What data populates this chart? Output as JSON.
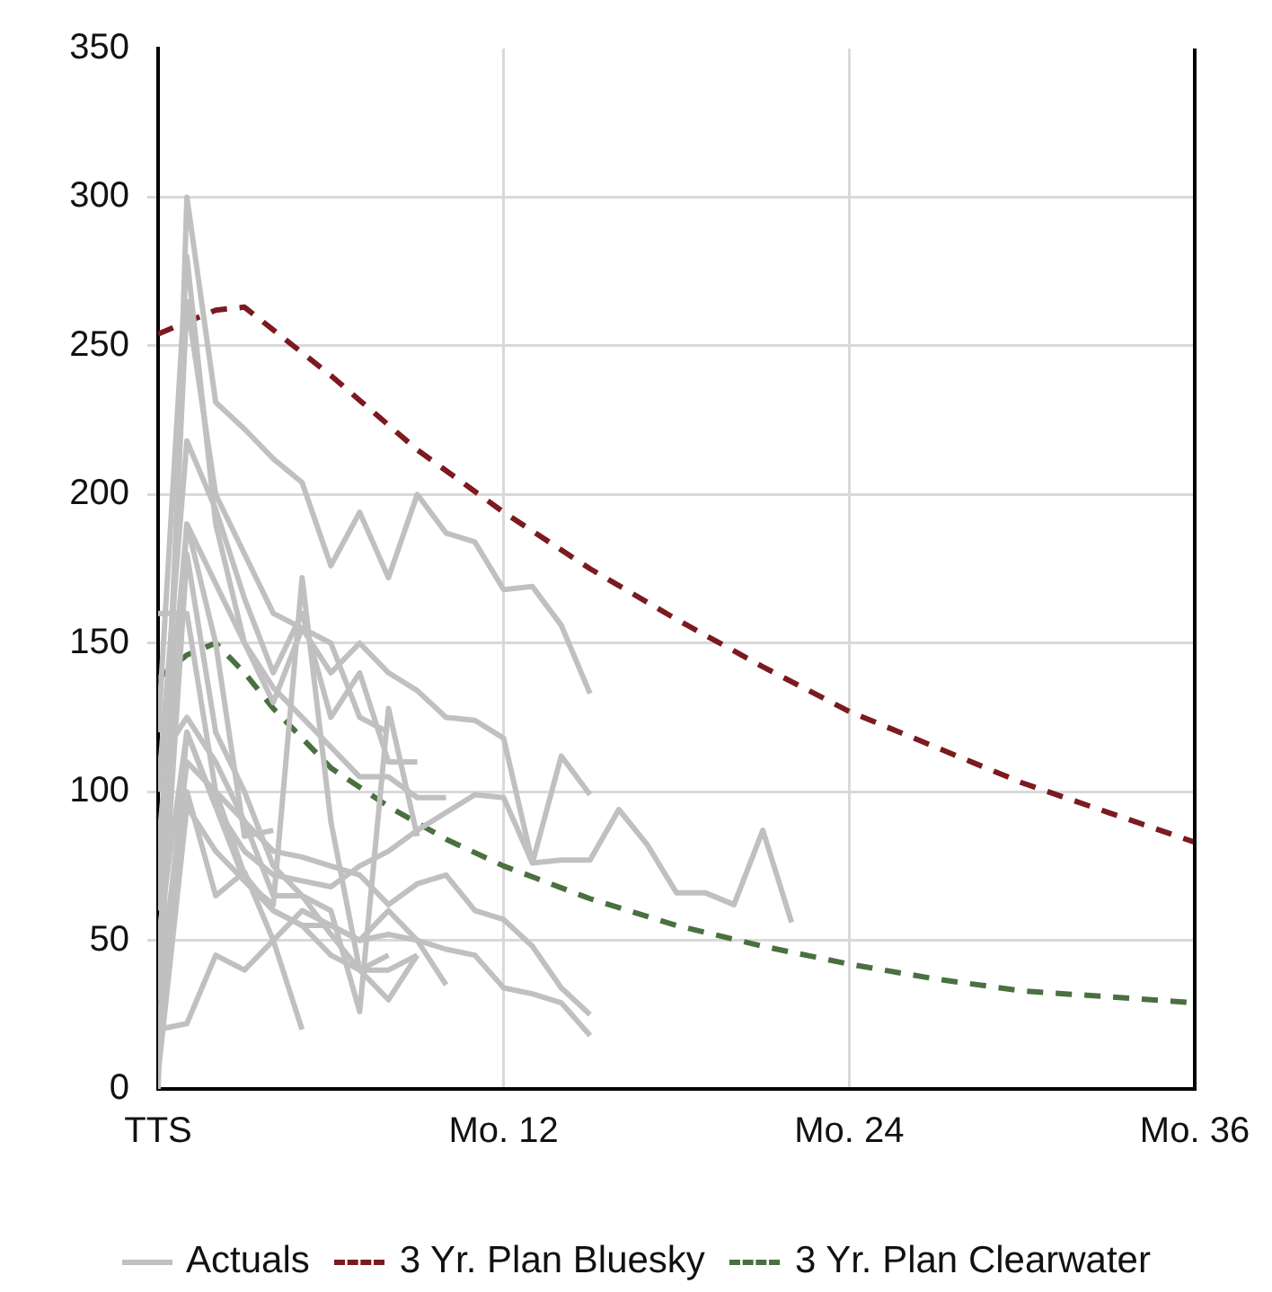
{
  "chart_data": {
    "type": "line",
    "xlim": [
      0,
      36
    ],
    "xticks": [
      {
        "value": 0,
        "label": "TTS"
      },
      {
        "value": 12,
        "label": "Mo. 12"
      },
      {
        "value": 24,
        "label": "Mo. 24"
      },
      {
        "value": 36,
        "label": "Mo. 36"
      }
    ],
    "ylim": [
      0,
      350
    ],
    "yticks": [
      0,
      50,
      100,
      150,
      200,
      250,
      300,
      350
    ],
    "grid": true,
    "legend": "bottom",
    "marker": "none",
    "series": [
      {
        "name": "Actuals",
        "color": "#c0c0c0",
        "x": [
          0,
          1,
          2,
          3,
          4,
          5,
          6,
          7,
          8,
          9,
          10,
          11,
          12,
          13,
          14,
          15
        ],
        "values": [
          0,
          300,
          231,
          222,
          212,
          204,
          176,
          194,
          172,
          200,
          187,
          184,
          168,
          169,
          156,
          133
        ]
      },
      {
        "color": "#c0c0c0",
        "x": [
          0,
          1,
          2,
          3,
          4,
          5,
          6,
          7,
          8,
          9,
          10,
          11,
          12,
          13,
          14,
          15
        ],
        "values": [
          60,
          265,
          200,
          180,
          160,
          155,
          140,
          150,
          140,
          134,
          125,
          124,
          118,
          76,
          112,
          99
        ]
      },
      {
        "color": "#c0c0c0",
        "x": [
          0,
          1,
          2,
          3,
          4,
          5,
          6,
          7,
          8,
          9,
          10,
          11,
          12,
          13,
          14,
          15,
          16,
          17,
          18,
          19,
          20,
          21,
          22
        ],
        "values": [
          10,
          120,
          95,
          80,
          72,
          70,
          68,
          75,
          80,
          87,
          93,
          99,
          98,
          76,
          77,
          77,
          94,
          82,
          66,
          66,
          62,
          87,
          56
        ]
      },
      {
        "color": "#c0c0c0",
        "x": [
          0,
          1,
          2,
          3,
          4,
          5,
          6,
          7,
          8,
          9,
          10,
          11,
          12,
          13,
          14,
          15
        ],
        "values": [
          30,
          110,
          100,
          90,
          80,
          78,
          75,
          72,
          62,
          69,
          72,
          60,
          57,
          48,
          34,
          25
        ]
      },
      {
        "color": "#c0c0c0",
        "x": [
          0,
          1,
          2,
          3,
          4,
          5,
          6,
          7,
          8,
          9,
          10,
          11,
          12,
          13,
          14,
          15
        ],
        "values": [
          5,
          95,
          80,
          70,
          60,
          55,
          55,
          50,
          52,
          50,
          47,
          45,
          34,
          32,
          29,
          18
        ]
      },
      {
        "color": "#c0c0c0",
        "x": [
          0,
          1,
          2,
          3,
          4,
          5,
          6,
          7,
          8,
          9,
          10
        ],
        "values": [
          80,
          190,
          170,
          150,
          135,
          125,
          115,
          105,
          105,
          98,
          98
        ]
      },
      {
        "color": "#c0c0c0",
        "x": [
          0,
          1,
          2,
          3,
          4
        ],
        "values": [
          40,
          190,
          150,
          85,
          87
        ]
      },
      {
        "color": "#c0c0c0",
        "x": [
          0,
          1,
          2,
          3,
          4,
          5
        ],
        "values": [
          20,
          22,
          45,
          40,
          50,
          20
        ]
      },
      {
        "color": "#c0c0c0",
        "x": [
          0,
          1,
          2,
          3,
          4,
          5,
          6,
          7,
          8
        ],
        "values": [
          50,
          120,
          95,
          70,
          62,
          172,
          90,
          40,
          45
        ]
      },
      {
        "color": "#c0c0c0",
        "x": [
          0,
          1,
          2,
          3,
          4,
          5,
          6,
          7,
          8,
          9
        ],
        "values": [
          30,
          180,
          120,
          100,
          75,
          65,
          60,
          26,
          128,
          85
        ]
      },
      {
        "color": "#c0c0c0",
        "x": [
          0,
          1,
          2,
          3,
          4,
          5,
          6,
          7,
          8,
          9
        ],
        "values": [
          100,
          218,
          195,
          165,
          140,
          160,
          125,
          140,
          110,
          110
        ]
      },
      {
        "color": "#c0c0c0",
        "x": [
          0,
          1,
          2,
          3,
          4,
          5,
          6,
          7,
          8,
          9
        ],
        "values": [
          160,
          160,
          100,
          72,
          60,
          55,
          45,
          40,
          40,
          45
        ]
      },
      {
        "color": "#c0c0c0",
        "x": [
          0,
          1,
          2,
          3,
          4,
          5,
          6,
          7,
          8,
          9,
          10
        ],
        "values": [
          15,
          100,
          65,
          73,
          50,
          60,
          55,
          50,
          60,
          50,
          35
        ]
      },
      {
        "color": "#c0c0c0",
        "x": [
          0,
          1,
          2,
          3,
          4,
          5,
          6,
          7,
          8,
          9
        ],
        "values": [
          110,
          125,
          110,
          90,
          65,
          65,
          52,
          40,
          30,
          45
        ]
      },
      {
        "color": "#c0c0c0",
        "x": [
          0,
          1,
          2,
          3,
          4,
          5,
          6,
          7,
          8
        ],
        "values": [
          120,
          280,
          190,
          150,
          130,
          155,
          150,
          125,
          120
        ]
      },
      {
        "name": "3 Yr. Plan Bluesky",
        "color": "#7b1a1f",
        "line_style": "dashed",
        "x": [
          0,
          1,
          2,
          3,
          6,
          9,
          12,
          15,
          18,
          21,
          24,
          27,
          30,
          33,
          36
        ],
        "values": [
          254,
          258,
          262,
          263,
          240,
          215,
          194,
          175,
          158,
          142,
          127,
          115,
          103,
          93,
          83
        ]
      },
      {
        "name": "3 Yr. Plan Clearwater",
        "color": "#4a7040",
        "line_style": "dashed",
        "x": [
          0,
          1,
          2,
          3,
          4,
          5,
          6,
          8,
          10,
          12,
          15,
          18,
          21,
          24,
          27,
          30,
          33,
          36
        ],
        "values": [
          138,
          146,
          150,
          140,
          128,
          118,
          108,
          95,
          84,
          75,
          64,
          55,
          48,
          42,
          37,
          33,
          31,
          29
        ]
      }
    ]
  }
}
